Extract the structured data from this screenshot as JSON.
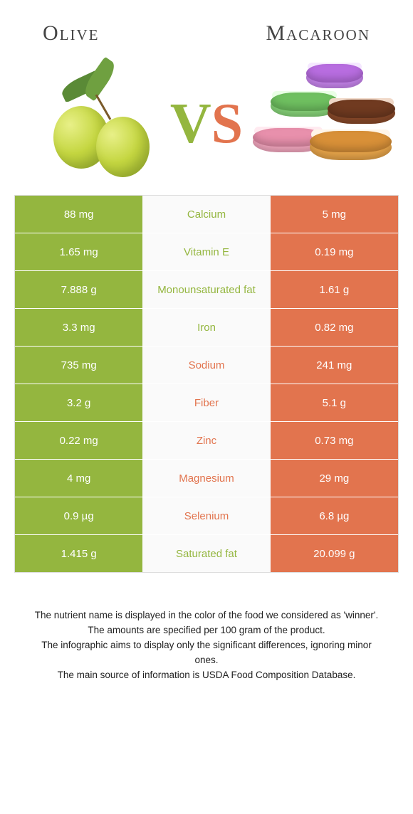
{
  "colors": {
    "olive": "#94b63f",
    "macaroon": "#e2744e",
    "mid_bg": "#fafafa",
    "row_border": "#ffffff",
    "table_border": "#dddddd"
  },
  "header": {
    "left": "Olive",
    "right": "Macaroon"
  },
  "vs": {
    "v": "V",
    "s": "S"
  },
  "rows": [
    {
      "label": "Calcium",
      "left": "88 mg",
      "right": "5 mg",
      "winner": "olive"
    },
    {
      "label": "Vitamin E",
      "left": "1.65 mg",
      "right": "0.19 mg",
      "winner": "olive"
    },
    {
      "label": "Monounsaturated fat",
      "left": "7.888 g",
      "right": "1.61 g",
      "winner": "olive"
    },
    {
      "label": "Iron",
      "left": "3.3 mg",
      "right": "0.82 mg",
      "winner": "olive"
    },
    {
      "label": "Sodium",
      "left": "735 mg",
      "right": "241 mg",
      "winner": "macaroon"
    },
    {
      "label": "Fiber",
      "left": "3.2 g",
      "right": "5.1 g",
      "winner": "macaroon"
    },
    {
      "label": "Zinc",
      "left": "0.22 mg",
      "right": "0.73 mg",
      "winner": "macaroon"
    },
    {
      "label": "Magnesium",
      "left": "4 mg",
      "right": "29 mg",
      "winner": "macaroon"
    },
    {
      "label": "Selenium",
      "left": "0.9 µg",
      "right": "6.8 µg",
      "winner": "macaroon"
    },
    {
      "label": "Saturated fat",
      "left": "1.415 g",
      "right": "20.099 g",
      "winner": "olive"
    }
  ],
  "footer": {
    "l1": "The nutrient name is displayed in the color of the food we considered as 'winner'.",
    "l2": "The amounts are specified per 100 gram of the product.",
    "l3": "The infographic aims to display only the significant differences, ignoring minor ones.",
    "l4": "The main source of information is USDA Food Composition Database."
  }
}
